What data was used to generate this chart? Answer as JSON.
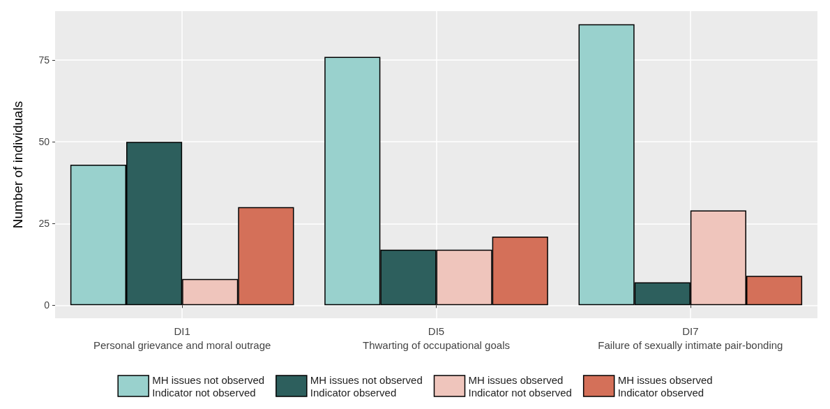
{
  "chart_data": {
    "type": "bar",
    "ylabel": "Number of individuals",
    "categories": [
      "DI1\nPersonal grievance and moral outrage",
      "DI5\nThwarting of occupational goals",
      "DI7\nFailure of sexually intimate pair-bonding"
    ],
    "series": [
      {
        "name": "MH issues not observed\nIndicator not observed",
        "color": "#99d1cd",
        "values": [
          43,
          76,
          86
        ]
      },
      {
        "name": "MH issues not observed\nIndicator observed",
        "color": "#2d5f5d",
        "values": [
          50,
          17,
          7
        ]
      },
      {
        "name": "MH issues observed\nIndicator not observed",
        "color": "#efc5bc",
        "values": [
          8,
          17,
          29
        ]
      },
      {
        "name": "MH issues observed\nIndicator observed",
        "color": "#d47059",
        "values": [
          30,
          21,
          9
        ]
      }
    ],
    "ylim": [
      -4,
      90
    ],
    "yticks": [
      0,
      25,
      50,
      75
    ],
    "grid": true,
    "legend": "bottom"
  }
}
